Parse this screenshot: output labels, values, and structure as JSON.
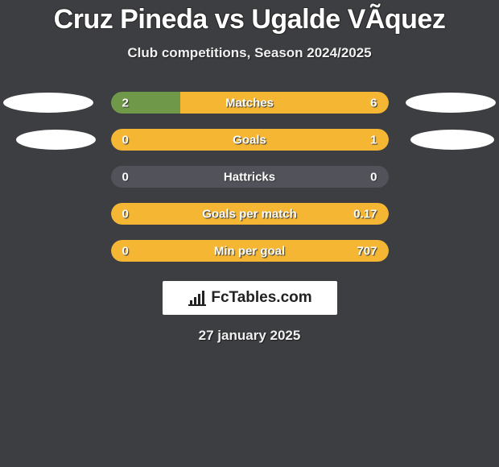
{
  "title": "Cruz Pineda vs Ugalde VÃquez",
  "subtitle": "Club competitions, Season 2024/2025",
  "date": "27 january 2025",
  "logo_text": "FcTables.com",
  "colors": {
    "background": "#3d3e42",
    "bar_neutral": "#51525a",
    "bar_yellow": "#f4b633",
    "bar_green": "#6f9948",
    "badge": "#ffffff",
    "text": "#ffffff"
  },
  "stats": [
    {
      "label": "Matches",
      "left_val": "2",
      "right_val": "6",
      "left_pct": 25,
      "right_pct": 75,
      "left_color": "#6f9948",
      "right_color": "#f4b633",
      "show_badges": true,
      "badge_variant": 1
    },
    {
      "label": "Goals",
      "left_val": "0",
      "right_val": "1",
      "left_pct": 0,
      "right_pct": 100,
      "left_color": "#6f9948",
      "right_color": "#f4b633",
      "show_badges": true,
      "badge_variant": 2
    },
    {
      "label": "Hattricks",
      "left_val": "0",
      "right_val": "0",
      "left_pct": 0,
      "right_pct": 0,
      "left_color": "#51525a",
      "right_color": "#51525a",
      "show_badges": false,
      "badge_variant": 0
    },
    {
      "label": "Goals per match",
      "left_val": "0",
      "right_val": "0.17",
      "left_pct": 0,
      "right_pct": 100,
      "left_color": "#6f9948",
      "right_color": "#f4b633",
      "show_badges": false,
      "badge_variant": 0
    },
    {
      "label": "Min per goal",
      "left_val": "0",
      "right_val": "707",
      "left_pct": 0,
      "right_pct": 100,
      "left_color": "#6f9948",
      "right_color": "#f4b633",
      "show_badges": false,
      "badge_variant": 0
    }
  ]
}
